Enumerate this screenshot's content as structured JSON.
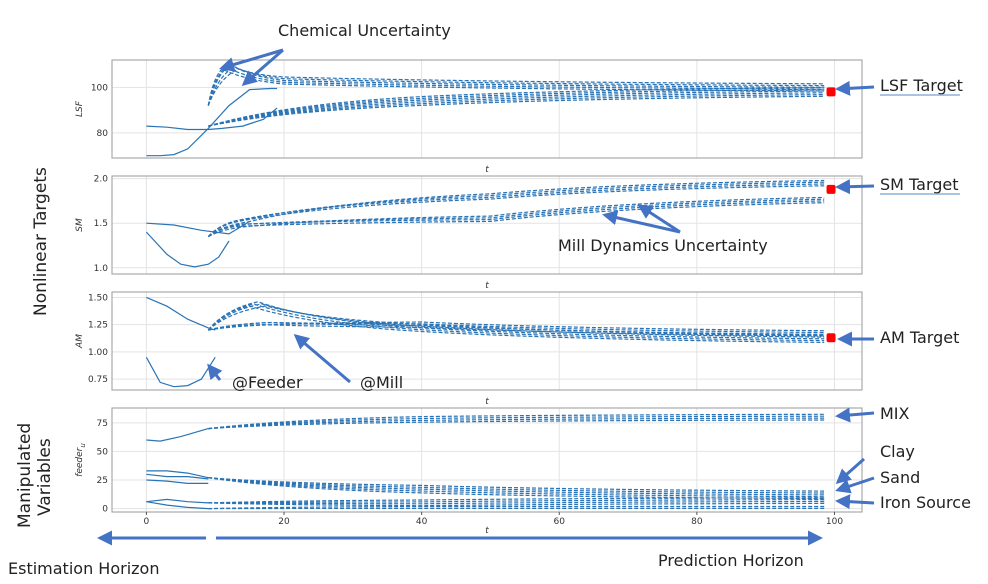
{
  "chart_data": {
    "type": "line",
    "x_range": [
      0,
      100
    ],
    "x_ticks": [
      "0",
      "20",
      "40",
      "60",
      "80",
      "100"
    ],
    "panels": [
      {
        "key": "lsf",
        "ylabel": "LSF",
        "xlabel": "t",
        "ylim": [
          69,
          112
        ],
        "yticks": [
          80,
          100
        ],
        "target": {
          "x": 99.5,
          "y": 98
        },
        "estimation_series": [
          {
            "x": [
              0,
              3,
              6,
              9,
              11,
              14,
              17,
              19
            ],
            "y": [
              83,
              82.5,
              81.5,
              81.5,
              82,
              83,
              86,
              91
            ]
          },
          {
            "x": [
              0,
              2,
              4,
              6,
              9,
              12,
              15,
              18,
              19
            ],
            "y": [
              70,
              70,
              70.5,
              73,
              82,
              92,
              99,
              99.5,
              99.5
            ]
          }
        ],
        "prediction_bundles": [
          {
            "start": [
              9,
              83
            ],
            "end": [
              98.5,
              98
            ],
            "mid": [
              40,
              94
            ],
            "count": 6
          },
          {
            "start": [
              9,
              92
            ],
            "end": [
              98.5,
              100
            ],
            "mid": [
              20,
              103
            ],
            "count": 5,
            "peak": [
              11,
              110
            ]
          }
        ]
      },
      {
        "key": "sm",
        "ylabel": "SM",
        "xlabel": "t",
        "ylim": [
          0.93,
          2.03
        ],
        "yticks": [
          1.0,
          1.5,
          2.0
        ],
        "target": {
          "x": 99.5,
          "y": 1.88
        },
        "estimation_series": [
          {
            "x": [
              0,
              3,
              5,
              7,
              9,
              10.5,
              12
            ],
            "y": [
              1.4,
              1.15,
              1.04,
              1.01,
              1.04,
              1.12,
              1.3
            ]
          },
          {
            "x": [
              0,
              4,
              8,
              12,
              15
            ],
            "y": [
              1.5,
              1.48,
              1.42,
              1.38,
              1.52
            ]
          }
        ],
        "prediction_bundles": [
          {
            "start": [
              9,
              1.35
            ],
            "end": [
              98.5,
              1.95
            ],
            "mid": [
              50,
              1.8
            ],
            "count": 4,
            "peak": [
              13,
              1.55
            ]
          },
          {
            "start": [
              9,
              1.35
            ],
            "end": [
              98.5,
              1.76
            ],
            "mid": [
              50,
              1.55
            ],
            "count": 4,
            "peak": [
              13,
              1.5
            ]
          }
        ]
      },
      {
        "key": "am",
        "ylabel": "AM",
        "xlabel": "t",
        "ylim": [
          0.65,
          1.55
        ],
        "yticks": [
          0.75,
          1.0,
          1.25,
          1.5
        ],
        "target": {
          "x": 99.5,
          "y": 1.13
        },
        "estimation_series": [
          {
            "x": [
              0,
              2,
              4,
              6,
              8,
              9,
              10
            ],
            "y": [
              0.95,
              0.72,
              0.68,
              0.69,
              0.75,
              0.85,
              0.95
            ]
          },
          {
            "x": [
              0,
              3,
              6,
              9,
              10
            ],
            "y": [
              1.5,
              1.42,
              1.3,
              1.22,
              1.2
            ]
          }
        ],
        "prediction_bundles": [
          {
            "start": [
              9,
              1.2
            ],
            "end": [
              98.5,
              1.12
            ],
            "mid": [
              40,
              1.22
            ],
            "count": 5,
            "peak": [
              15,
              1.46
            ]
          },
          {
            "start": [
              9,
              1.2
            ],
            "end": [
              98.5,
              1.17
            ],
            "mid": [
              40,
              1.25
            ],
            "count": 4,
            "peak": [
              17,
              1.28
            ]
          }
        ]
      },
      {
        "key": "feeder",
        "ylabel": "feeder",
        "ylabel_sub": "u",
        "xlabel": "t",
        "ylim": [
          -3,
          88
        ],
        "yticks": [
          0,
          25,
          50,
          75
        ],
        "estimation_series": [
          {
            "x": [
              0,
              2,
              5,
              9
            ],
            "y": [
              60,
              59,
              63,
              70
            ]
          },
          {
            "x": [
              0,
              3,
              6,
              9
            ],
            "y": [
              33,
              33,
              31,
              27
            ]
          },
          {
            "x": [
              0,
              3,
              6,
              9
            ],
            "y": [
              30,
              28,
              28,
              26
            ]
          },
          {
            "x": [
              0,
              3,
              6,
              9
            ],
            "y": [
              25,
              24,
              22,
              22
            ]
          },
          {
            "x": [
              0,
              3,
              6,
              9
            ],
            "y": [
              6,
              8,
              6,
              5
            ]
          },
          {
            "x": [
              0,
              3,
              6,
              9
            ],
            "y": [
              6,
              3,
              1,
              0
            ]
          }
        ],
        "prediction_bundles": [
          {
            "start": [
              9,
              70
            ],
            "end": [
              98.5,
              80
            ],
            "mid": [
              40,
              78
            ],
            "count": 4
          },
          {
            "start": [
              9,
              27
            ],
            "end": [
              98.5,
              12
            ],
            "mid": [
              40,
              17
            ],
            "count": 5
          },
          {
            "start": [
              9,
              5
            ],
            "end": [
              98.5,
              7
            ],
            "mid": [
              40,
              5
            ],
            "count": 4
          },
          {
            "start": [
              9,
              0
            ],
            "end": [
              98.5,
              1
            ],
            "mid": [
              40,
              1
            ],
            "count": 2
          }
        ]
      }
    ]
  },
  "annotations": {
    "chemical_uncertainty": "Chemical Uncertainty",
    "lsf_target": "LSF Target",
    "sm_target": "SM Target",
    "am_target": "AM Target",
    "mill_dynamics_uncertainty": "Mill Dynamics Uncertainty",
    "feeder": "@Feeder",
    "mill": "@Mill",
    "mix": "MIX",
    "clay": "Clay",
    "sand": "Sand",
    "iron_source": "Iron Source",
    "nonlinear_targets": "Nonlinear Targets",
    "manipulated_variables_line1": "Manipulated",
    "manipulated_variables_line2": "Variables",
    "estimation_horizon": "Estimation Horizon",
    "prediction_horizon": "Prediction Horizon"
  },
  "colors": {
    "line": "#2a74b5",
    "arrow": "#4472c4",
    "target": "#ff0000",
    "frame": "#9a9a9a",
    "grid": "#e3e3e3"
  }
}
